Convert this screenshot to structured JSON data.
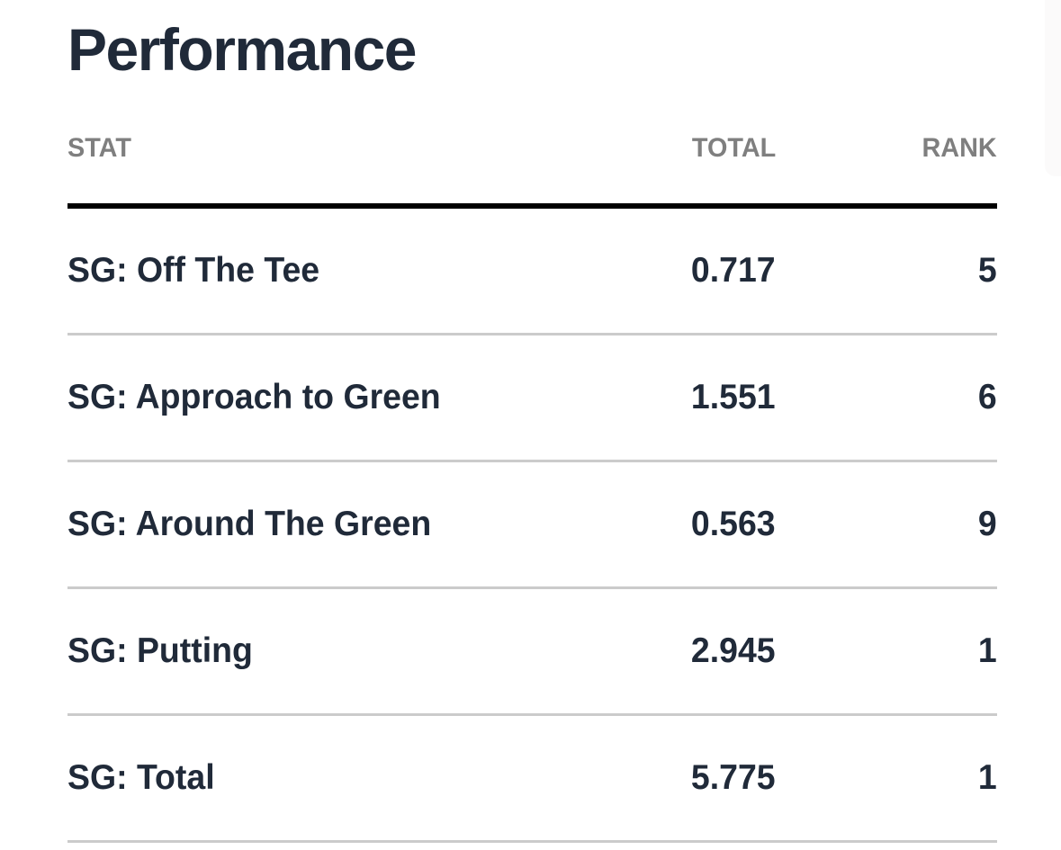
{
  "card": {
    "title": "Performance"
  },
  "table": {
    "columns": [
      {
        "key": "stat",
        "label": "STAT"
      },
      {
        "key": "total",
        "label": "TOTAL"
      },
      {
        "key": "rank",
        "label": "RANK"
      }
    ],
    "rows": [
      {
        "stat": "SG: Off The Tee",
        "total": "0.717",
        "rank": "5"
      },
      {
        "stat": "SG: Approach to Green",
        "total": "1.551",
        "rank": "6"
      },
      {
        "stat": "SG: Around The Green",
        "total": "0.563",
        "rank": "9"
      },
      {
        "stat": "SG: Putting",
        "total": "2.945",
        "rank": "1"
      },
      {
        "stat": "SG: Total",
        "total": "5.775",
        "rank": "1"
      }
    ]
  },
  "chart_data": {
    "type": "table",
    "title": "Performance",
    "columns": [
      "STAT",
      "TOTAL",
      "RANK"
    ],
    "rows": [
      [
        "SG: Off The Tee",
        0.717,
        5
      ],
      [
        "SG: Approach to Green",
        1.551,
        6
      ],
      [
        "SG: Around The Green",
        0.563,
        9
      ],
      [
        "SG: Putting",
        2.945,
        1
      ],
      [
        "SG: Total",
        5.775,
        1
      ]
    ]
  },
  "colors": {
    "background": "#ffffff",
    "text_dark": "#202a39",
    "header_gray": "#7f7f7f",
    "divider_gray": "#cbcbcb",
    "heavy_rule": "#000000",
    "adjacent_card": "#fbfafa"
  }
}
